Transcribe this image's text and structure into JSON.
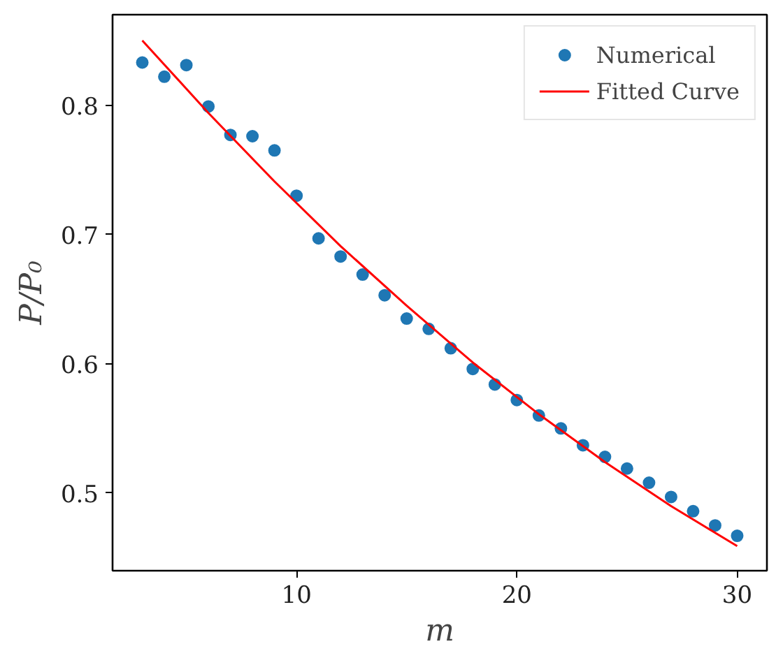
{
  "chart_data": {
    "type": "scatter",
    "xlabel": "m",
    "ylabel": "P/P₀",
    "xlim": [
      1.65,
      31.35
    ],
    "ylim": [
      0.44,
      0.87
    ],
    "xticks": [
      10,
      20,
      30
    ],
    "yticks": [
      0.5,
      0.6,
      0.7,
      0.8
    ],
    "grid": false,
    "legend": "top right",
    "series": [
      {
        "name": "Numerical",
        "marker": "circle",
        "color": "#1f77b4",
        "x": [
          3,
          4,
          5,
          6,
          7,
          8,
          9,
          10,
          11,
          12,
          13,
          14,
          15,
          16,
          17,
          18,
          19,
          20,
          21,
          22,
          23,
          24,
          25,
          26,
          27,
          28,
          29,
          30
        ],
        "values": [
          0.833,
          0.822,
          0.831,
          0.799,
          0.777,
          0.776,
          0.765,
          0.73,
          0.697,
          0.683,
          0.669,
          0.653,
          0.635,
          0.627,
          0.612,
          0.596,
          0.584,
          0.572,
          0.56,
          0.55,
          0.537,
          0.528,
          0.519,
          0.508,
          0.497,
          0.486,
          0.475,
          0.467
        ]
      },
      {
        "name": "Fitted Curve",
        "type": "line",
        "line_style": "solid",
        "color": "#ff0000",
        "x": [
          3,
          6,
          9,
          12,
          15,
          18,
          21,
          24,
          27,
          30
        ],
        "values": [
          0.85,
          0.794,
          0.741,
          0.691,
          0.645,
          0.601,
          0.561,
          0.524,
          0.49,
          0.459
        ]
      }
    ]
  }
}
